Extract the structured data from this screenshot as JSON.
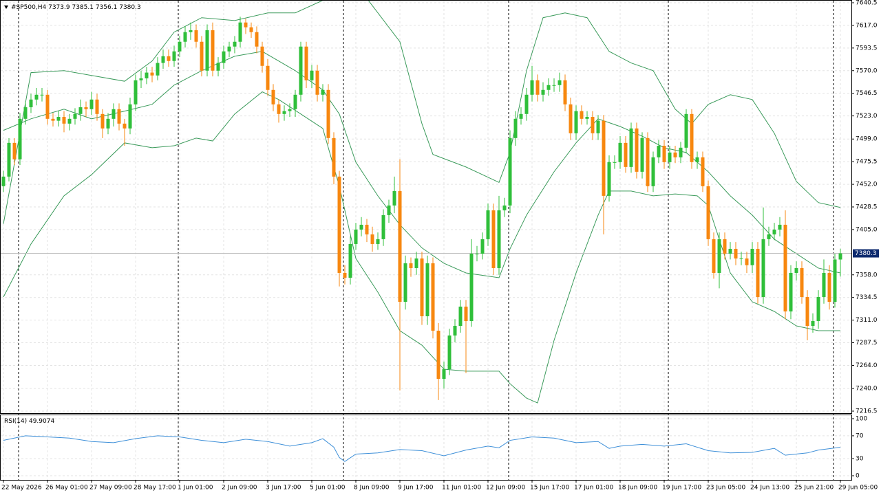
{
  "chart_data": [
    {
      "type": "candlestick",
      "title": "#SP500,H4",
      "open": [
        7450,
        7460,
        7495,
        7478,
        7520,
        7532,
        7540,
        7545,
        7545,
        7520,
        7518,
        7522,
        7515,
        7520,
        7525,
        7532,
        7530,
        7540,
        7525,
        7510,
        7520,
        7530,
        7515,
        7510,
        7535,
        7560,
        7562,
        7568,
        7565,
        7578,
        7585,
        7580,
        7590,
        7600,
        7610,
        7612,
        7600,
        7570,
        7612,
        7570,
        7578,
        7590,
        7595,
        7600,
        7620,
        7615,
        7610,
        7595,
        7575,
        7550,
        7535,
        7525,
        7528,
        7530,
        7545,
        7595,
        7560,
        7570,
        7545,
        7550,
        7500,
        7460,
        7360,
        7355,
        7390,
        7405,
        7410,
        7400,
        7390,
        7395,
        7420,
        7430,
        7445,
        7330,
        7370,
        7365,
        7375,
        7315,
        7370,
        7300,
        7250,
        7260,
        7295,
        7305,
        7325,
        7310,
        7380,
        7380,
        7395,
        7425,
        7365,
        7425,
        7430,
        7500,
        7520,
        7525,
        7545,
        7560,
        7545,
        7550,
        7555,
        7555,
        7560,
        7535,
        7505,
        7528,
        7520,
        7522,
        7505,
        7518,
        7440,
        7475,
        7475,
        7495,
        7470,
        7510,
        7465,
        7500,
        7450,
        7480,
        7492,
        7475,
        7485,
        7480,
        7490,
        7525,
        7475,
        7480,
        7450,
        7395,
        7360,
        7395,
        7380,
        7385,
        7375,
        7375,
        7368,
        7385,
        7335,
        7395,
        7400,
        7405,
        7410,
        7320,
        7360,
        7365,
        7335,
        7305,
        7310,
        7335,
        7360,
        7330,
        7373.9
      ],
      "high": [
        7466,
        7500,
        7500,
        7526,
        7538,
        7546,
        7552,
        7552,
        7550,
        7526,
        7528,
        7528,
        7525,
        7531,
        7540,
        7538,
        7548,
        7546,
        7530,
        7526,
        7536,
        7536,
        7520,
        7542,
        7566,
        7570,
        7574,
        7574,
        7584,
        7592,
        7592,
        7596,
        7606,
        7616,
        7620,
        7618,
        7606,
        7618,
        7620,
        7584,
        7596,
        7600,
        7606,
        7626,
        7624,
        7620,
        7616,
        7600,
        7582,
        7556,
        7540,
        7534,
        7536,
        7550,
        7600,
        7600,
        7576,
        7576,
        7556,
        7556,
        7506,
        7466,
        7368,
        7398,
        7412,
        7418,
        7416,
        7408,
        7402,
        7426,
        7436,
        7460,
        7478,
        7378,
        7376,
        7382,
        7382,
        7378,
        7376,
        7308,
        7268,
        7302,
        7312,
        7332,
        7332,
        7395,
        7388,
        7402,
        7432,
        7432,
        7440,
        7438,
        7508,
        7528,
        7532,
        7552,
        7575,
        7566,
        7558,
        7562,
        7562,
        7568,
        7566,
        7542,
        7534,
        7534,
        7528,
        7528,
        7524,
        7524,
        7482,
        7482,
        7502,
        7502,
        7516,
        7516,
        7506,
        7506,
        7486,
        7498,
        7498,
        7492,
        7492,
        7496,
        7530,
        7530,
        7486,
        7486,
        7456,
        7402,
        7402,
        7402,
        7392,
        7392,
        7382,
        7382,
        7392,
        7392,
        7428,
        7408,
        7412,
        7418,
        7425,
        7368,
        7372,
        7372,
        7342,
        7318,
        7342,
        7374,
        7368,
        7380,
        7385.1
      ],
      "low": [
        7444,
        7455,
        7472,
        7472,
        7514,
        7526,
        7534,
        7538,
        7514,
        7512,
        7512,
        7506,
        7508,
        7514,
        7518,
        7522,
        7524,
        7518,
        7500,
        7504,
        7512,
        7508,
        7492,
        7504,
        7528,
        7552,
        7556,
        7558,
        7560,
        7572,
        7574,
        7574,
        7584,
        7594,
        7602,
        7594,
        7564,
        7564,
        7564,
        7564,
        7572,
        7584,
        7588,
        7594,
        7608,
        7604,
        7588,
        7568,
        7544,
        7528,
        7516,
        7518,
        7522,
        7522,
        7538,
        7552,
        7552,
        7538,
        7538,
        7494,
        7452,
        7346,
        7348,
        7348,
        7384,
        7398,
        7392,
        7382,
        7384,
        7388,
        7412,
        7422,
        7238,
        7322,
        7356,
        7358,
        7306,
        7306,
        7292,
        7228,
        7240,
        7254,
        7288,
        7298,
        7256,
        7304,
        7372,
        7374,
        7388,
        7358,
        7358,
        7418,
        7422,
        7492,
        7514,
        7518,
        7538,
        7538,
        7538,
        7544,
        7548,
        7548,
        7528,
        7498,
        7498,
        7514,
        7514,
        7498,
        7498,
        7400,
        7434,
        7468,
        7468,
        7464,
        7464,
        7458,
        7458,
        7444,
        7444,
        7474,
        7468,
        7468,
        7474,
        7474,
        7484,
        7468,
        7468,
        7444,
        7388,
        7354,
        7344,
        7374,
        7374,
        7368,
        7368,
        7360,
        7360,
        7328,
        7328,
        7388,
        7394,
        7398,
        7312,
        7312,
        7352,
        7328,
        7290,
        7298,
        7302,
        7328,
        7322,
        7324,
        7356.1
      ],
      "close": [
        7460,
        7495,
        7478,
        7520,
        7532,
        7540,
        7545,
        7545,
        7520,
        7518,
        7522,
        7515,
        7520,
        7525,
        7532,
        7530,
        7540,
        7525,
        7510,
        7520,
        7530,
        7515,
        7510,
        7535,
        7560,
        7562,
        7568,
        7565,
        7578,
        7585,
        7580,
        7590,
        7600,
        7610,
        7612,
        7600,
        7570,
        7612,
        7570,
        7578,
        7590,
        7595,
        7600,
        7620,
        7615,
        7610,
        7595,
        7575,
        7550,
        7535,
        7525,
        7528,
        7530,
        7545,
        7595,
        7560,
        7570,
        7545,
        7550,
        7500,
        7460,
        7360,
        7355,
        7390,
        7405,
        7410,
        7400,
        7390,
        7395,
        7420,
        7430,
        7445,
        7330,
        7370,
        7365,
        7375,
        7315,
        7370,
        7300,
        7250,
        7260,
        7295,
        7305,
        7325,
        7310,
        7380,
        7380,
        7395,
        7425,
        7365,
        7425,
        7430,
        7500,
        7520,
        7525,
        7545,
        7560,
        7545,
        7550,
        7555,
        7555,
        7560,
        7535,
        7505,
        7528,
        7520,
        7522,
        7505,
        7518,
        7440,
        7475,
        7475,
        7495,
        7470,
        7510,
        7465,
        7500,
        7450,
        7480,
        7492,
        7475,
        7485,
        7480,
        7490,
        7525,
        7475,
        7480,
        7450,
        7395,
        7360,
        7395,
        7380,
        7385,
        7375,
        7375,
        7368,
        7385,
        7335,
        7395,
        7400,
        7405,
        7410,
        7320,
        7360,
        7365,
        7335,
        7305,
        7310,
        7335,
        7360,
        7330,
        7373.9,
        7380.3
      ],
      "up_color": "#2fbf3a",
      "down_color": "#f7870f",
      "bands": [
        {
          "color": "#3a9a5a",
          "x": [
            0,
            5,
            11,
            16,
            22,
            27,
            31,
            36,
            42,
            48,
            53,
            58,
            61,
            66,
            72,
            76,
            78,
            84,
            90,
            92,
            95,
            98,
            102,
            106,
            110,
            114,
            118,
            122,
            125,
            128,
            132,
            136,
            140,
            144,
            148,
            152
          ],
          "values": [
            7411,
            7568,
            7570,
            7565,
            7559,
            7580,
            7610,
            7625,
            7622,
            7630,
            7630,
            7643,
            7650,
            7645,
            7600,
            7515,
            7483,
            7470,
            7454,
            7485,
            7570,
            7625,
            7630,
            7625,
            7590,
            7578,
            7570,
            7530,
            7515,
            7535,
            7545,
            7540,
            7505,
            7455,
            7433,
            7428
          ]
        },
        {
          "color": "#3a9a5a",
          "x": [
            0,
            5,
            11,
            16,
            22,
            27,
            31,
            36,
            42,
            47,
            53,
            58,
            61,
            64,
            68,
            72,
            76,
            80,
            84,
            90,
            92,
            95,
            100,
            104,
            108,
            112,
            116,
            120,
            124,
            128,
            132,
            136,
            140,
            144,
            148,
            152
          ],
          "values": [
            7508,
            7520,
            7530,
            7520,
            7528,
            7535,
            7555,
            7570,
            7585,
            7590,
            7570,
            7550,
            7525,
            7475,
            7440,
            7410,
            7386,
            7370,
            7360,
            7355,
            7385,
            7420,
            7465,
            7495,
            7520,
            7512,
            7502,
            7490,
            7485,
            7465,
            7440,
            7420,
            7395,
            7380,
            7365,
            7360
          ]
        },
        {
          "color": "#3a9a5a",
          "x": [
            0,
            5,
            11,
            16,
            22,
            27,
            31,
            35,
            38,
            42,
            47,
            50,
            54,
            58,
            61,
            64,
            68,
            72,
            76,
            80,
            84,
            90,
            92,
            95,
            97,
            100,
            104,
            108,
            110,
            114,
            118,
            122,
            126,
            128,
            132,
            136,
            140,
            144,
            148,
            152
          ],
          "values": [
            7335,
            7390,
            7440,
            7462,
            7495,
            7490,
            7492,
            7500,
            7497,
            7525,
            7548,
            7540,
            7525,
            7510,
            7450,
            7375,
            7340,
            7300,
            7285,
            7260,
            7258,
            7258,
            7245,
            7230,
            7225,
            7290,
            7360,
            7420,
            7445,
            7445,
            7440,
            7442,
            7440,
            7430,
            7360,
            7330,
            7320,
            7305,
            7300,
            7300
          ]
        }
      ],
      "ylim": [
        7216.5,
        7640.5
      ],
      "yticks": [
        {
          "value": 7640.5,
          "label": "7640.5"
        },
        {
          "value": 7617,
          "label": "7617.0"
        },
        {
          "value": 7593.5,
          "label": "7593.5"
        },
        {
          "value": 7570,
          "label": "7570.0"
        },
        {
          "value": 7546.5,
          "label": "7546.5"
        },
        {
          "value": 7523,
          "label": "7523.0"
        },
        {
          "value": 7499,
          "label": "7499.0"
        },
        {
          "value": 7475.5,
          "label": "7475.5"
        },
        {
          "value": 7452,
          "label": "7452.0"
        },
        {
          "value": 7428.5,
          "label": "7428.5"
        },
        {
          "value": 7405,
          "label": "7405.0"
        },
        {
          "value": 7358,
          "label": "7358.0"
        },
        {
          "value": 7334.5,
          "label": "7334.5"
        },
        {
          "value": 7311,
          "label": "7311.0"
        },
        {
          "value": 7287.5,
          "label": "7287.5"
        },
        {
          "value": 7264,
          "label": "7264.0"
        },
        {
          "value": 7240,
          "label": "7240.0"
        },
        {
          "value": 7216.5,
          "label": "7216.5"
        }
      ],
      "xticks": [
        {
          "value": 0,
          "label": "22 May 2026"
        },
        {
          "value": 8,
          "label": "26 May 01:00"
        },
        {
          "value": 16,
          "label": "27 May 09:00"
        },
        {
          "value": 24,
          "label": "28 May 17:00"
        },
        {
          "value": 32,
          "label": "1 Jun 01:00"
        },
        {
          "value": 40,
          "label": "2 Jun 09:00"
        },
        {
          "value": 48,
          "label": "3 Jun 17:00"
        },
        {
          "value": 56,
          "label": "5 Jun 01:00"
        },
        {
          "value": 64,
          "label": "8 Jun 09:00"
        },
        {
          "value": 72,
          "label": "9 Jun 17:00"
        },
        {
          "value": 80,
          "label": "11 Jun 01:00"
        },
        {
          "value": 88,
          "label": "12 Jun 09:00"
        },
        {
          "value": 96,
          "label": "15 Jun 17:00"
        },
        {
          "value": 104,
          "label": "17 Jun 01:00"
        },
        {
          "value": 112,
          "label": "18 Jun 09:00"
        },
        {
          "value": 120,
          "label": "19 Jun 17:00"
        },
        {
          "value": 128,
          "label": "23 Jun 05:00"
        },
        {
          "value": 136,
          "label": "24 Jun 13:00"
        },
        {
          "value": 144,
          "label": "25 Jun 21:00"
        },
        {
          "value": 152,
          "label": "29 Jun 05:00"
        }
      ],
      "grid": true
    },
    {
      "type": "line",
      "title": "RSI(14)",
      "color": "#3d8fd8",
      "x": [
        0,
        4,
        8,
        12,
        16,
        20,
        24,
        28,
        32,
        36,
        40,
        44,
        48,
        52,
        56,
        58,
        60,
        61,
        62,
        64,
        68,
        72,
        76,
        80,
        84,
        88,
        90,
        92,
        96,
        100,
        104,
        108,
        110,
        112,
        116,
        120,
        124,
        128,
        132,
        136,
        140,
        142,
        146,
        148,
        152
      ],
      "values": [
        62,
        70,
        68,
        66,
        60,
        58,
        65,
        70,
        68,
        62,
        58,
        64,
        60,
        52,
        58,
        65,
        50,
        32,
        25,
        38,
        40,
        46,
        44,
        35,
        45,
        52,
        49,
        62,
        68,
        66,
        58,
        60,
        48,
        52,
        55,
        52,
        56,
        44,
        40,
        41,
        48,
        36,
        40,
        45,
        49.9074
      ],
      "ylim": [
        0,
        100
      ],
      "yticks": [
        100,
        70,
        30,
        0
      ]
    }
  ]
}
